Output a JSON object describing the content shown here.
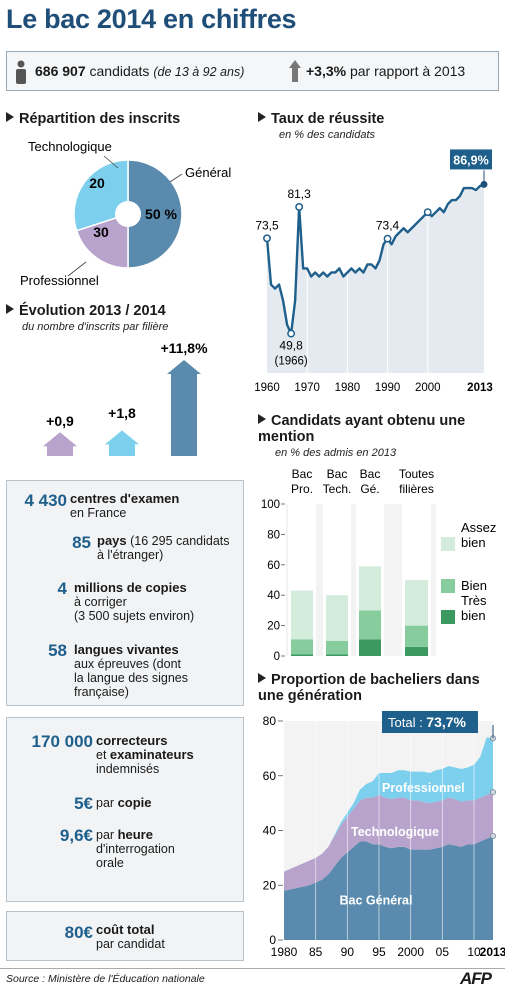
{
  "title": "Le bac 2014 en chiffres",
  "topbar": {
    "candidates_number": "686 907",
    "candidates_label": "candidats",
    "candidates_ages": "(de 13 à 92 ans)",
    "growth_value": "+3,3%",
    "growth_label": "par rapport à 2013"
  },
  "repartition": {
    "heading": "Répartition des inscrits",
    "labels": {
      "techno": "Technologique",
      "general": "Général",
      "pro": "Professionnel"
    },
    "values": {
      "techno": "20",
      "general": "50 %",
      "pro": "30"
    }
  },
  "evolution": {
    "heading": "Évolution 2013 / 2014",
    "subheading": "du nombre d'inscrits par filière",
    "values": [
      "+0,9",
      "+1,8",
      "+11,8%"
    ],
    "colors": [
      "#b8a3cc",
      "#7cd0ee",
      "#5a8bae"
    ]
  },
  "stats1": {
    "centres_num": "4 430",
    "centres_bold": "centres d'examen",
    "centres_rest": "en France",
    "pays_num": "85",
    "pays_bold": "pays",
    "pays_rest1": "(16 295 candidats",
    "pays_rest2": "à l'étranger)",
    "copies_num": "4",
    "copies_bold": "millions de copies",
    "copies_rest1": "à corriger",
    "copies_rest2": "(3 500 sujets environ)",
    "langues_num": "58",
    "langues_bold": "langues vivantes",
    "langues_rest1": "aux épreuves (dont",
    "langues_rest2": "la langue des signes",
    "langues_rest3": "française)"
  },
  "stats2": {
    "corr_num": "170 000",
    "corr_bold1": "correcteurs",
    "corr_mid": "et",
    "corr_bold2": "examinateurs",
    "corr_rest": "indemnisés",
    "copie_num": "5€",
    "copie_pre": "par",
    "copie_bold": "copie",
    "heure_num": "9,6€",
    "heure_pre": "par",
    "heure_bold": "heure",
    "heure_rest1": "d'interrogation",
    "heure_rest2": "orale"
  },
  "stats3": {
    "cout_num": "80€",
    "cout_bold": "coût total",
    "cout_rest": "par candidat"
  },
  "source": "Source : Ministère de l'Éducation nationale",
  "logo": "AFP",
  "chart_data": [
    {
      "type": "pie",
      "categories": [
        "Général",
        "Technologique",
        "Professionnel"
      ],
      "values": [
        50,
        20,
        30
      ],
      "colors": [
        "#5a8bae",
        "#b8a3cc",
        "#7cd0ee"
      ]
    },
    {
      "type": "bar",
      "title": "Évolution 2013 / 2014",
      "subtitle": "du nombre d'inscrits par filière",
      "values": [
        0.9,
        1.8,
        11.8
      ],
      "colors": [
        "#b8a3cc",
        "#7cd0ee",
        "#5a8bae"
      ]
    },
    {
      "type": "area",
      "title": "Taux de réussite",
      "subtitle": "en % des candidats",
      "x": [
        1960,
        1961,
        1962,
        1963,
        1964,
        1965,
        1966,
        1967,
        1968,
        1969,
        1970,
        1971,
        1972,
        1973,
        1974,
        1975,
        1976,
        1977,
        1978,
        1979,
        1980,
        1981,
        1982,
        1983,
        1984,
        1985,
        1986,
        1987,
        1988,
        1989,
        1990,
        1991,
        1992,
        1993,
        1994,
        1995,
        1996,
        1997,
        1998,
        1999,
        2000,
        2001,
        2002,
        2003,
        2004,
        2005,
        2006,
        2007,
        2008,
        2009,
        2010,
        2011,
        2012,
        2013,
        2014
      ],
      "y": [
        73.5,
        62,
        61,
        62,
        58,
        52,
        49.8,
        58,
        81.3,
        66,
        66,
        64,
        65,
        64,
        65,
        64,
        65,
        65,
        66,
        64,
        65,
        66,
        65,
        66,
        65,
        67,
        67,
        66,
        68,
        72,
        73.4,
        72,
        74,
        75,
        76,
        75,
        76,
        77,
        78,
        79,
        80,
        79,
        80,
        81,
        80,
        82,
        83,
        83,
        84,
        86,
        86,
        86,
        85.5,
        86.5,
        86.9
      ],
      "xticks": [
        "1960",
        "1970",
        "1980",
        "1990",
        "2000",
        "2013"
      ],
      "labels": [
        {
          "x": 1960,
          "y": 73.5,
          "text": "73,5"
        },
        {
          "x": 1966,
          "y": 49.8,
          "text": "49,8",
          "text2": "(1966)"
        },
        {
          "x": 1968,
          "y": 81.3,
          "text": "81,3"
        },
        {
          "x": 1990,
          "y": 73.4,
          "text": "73,4"
        },
        {
          "x": 2014,
          "y": 86.9,
          "text": "86,9%"
        }
      ],
      "color": "#1f5f8b"
    },
    {
      "type": "bar",
      "title": "Candidats ayant obtenu une mention",
      "subtitle": "en % des admis en 2013",
      "categories": [
        "Bac Pro.",
        "Bac Tech.",
        "Bac Gé.",
        "Toutes filières"
      ],
      "series": [
        {
          "name": "Très bien",
          "values": [
            1,
            1,
            11,
            6
          ],
          "color": "#3c9a60"
        },
        {
          "name": "Bien",
          "values": [
            10,
            9,
            19,
            14
          ],
          "color": "#86cc9d"
        },
        {
          "name": "Assez bien",
          "values": [
            32,
            30,
            29,
            30
          ],
          "color": "#d3ecdc"
        }
      ],
      "ylim": [
        0,
        100
      ],
      "yticks": [
        0,
        20,
        40,
        60,
        80,
        100
      ]
    },
    {
      "type": "area",
      "title": "Proportion de bacheliers dans une génération",
      "x": [
        1980,
        1981,
        1982,
        1983,
        1984,
        1985,
        1986,
        1987,
        1988,
        1989,
        1990,
        1991,
        1992,
        1993,
        1994,
        1995,
        1996,
        1997,
        1998,
        1999,
        2000,
        2001,
        2002,
        2003,
        2004,
        2005,
        2006,
        2007,
        2008,
        2009,
        2010,
        2011,
        2012,
        2013
      ],
      "series": [
        {
          "name": "Bac Général",
          "values": [
            18,
            18.5,
            19,
            19.5,
            20,
            21,
            22,
            24,
            27,
            30,
            32,
            34,
            36,
            36,
            35,
            35,
            34,
            33.5,
            34,
            34,
            33,
            33,
            33,
            33,
            33.5,
            34,
            35,
            34.5,
            34,
            35,
            35,
            36,
            37,
            38
          ],
          "color": "#5a8bae"
        },
        {
          "name": "Technologique",
          "values": [
            7,
            7.5,
            8,
            8.5,
            9,
            9,
            9.5,
            10,
            11,
            12,
            13,
            14,
            15,
            16,
            17,
            18,
            18,
            18,
            18,
            18,
            18,
            18,
            17.5,
            17,
            17,
            17,
            17,
            17,
            16.5,
            16,
            16,
            16,
            16,
            16
          ],
          "color": "#b8a3cc"
        },
        {
          "name": "Professionnel",
          "values": [
            0,
            0,
            0,
            0,
            0,
            0,
            0,
            0,
            0.5,
            1,
            1.5,
            2,
            4,
            5,
            6,
            8,
            9,
            9.5,
            10,
            10,
            10.5,
            10.5,
            11,
            11,
            11.5,
            11.5,
            11.5,
            11.5,
            12,
            12,
            13,
            15,
            21,
            19.7
          ],
          "color": "#7cd0ee"
        }
      ],
      "ylim": [
        0,
        80
      ],
      "yticks": [
        0,
        20,
        40,
        60,
        80
      ],
      "xticks": [
        "1980",
        "85",
        "90",
        "95",
        "2000",
        "05",
        "10",
        "2013"
      ],
      "total_label": "Total : ",
      "total_value": "73,7%"
    }
  ]
}
